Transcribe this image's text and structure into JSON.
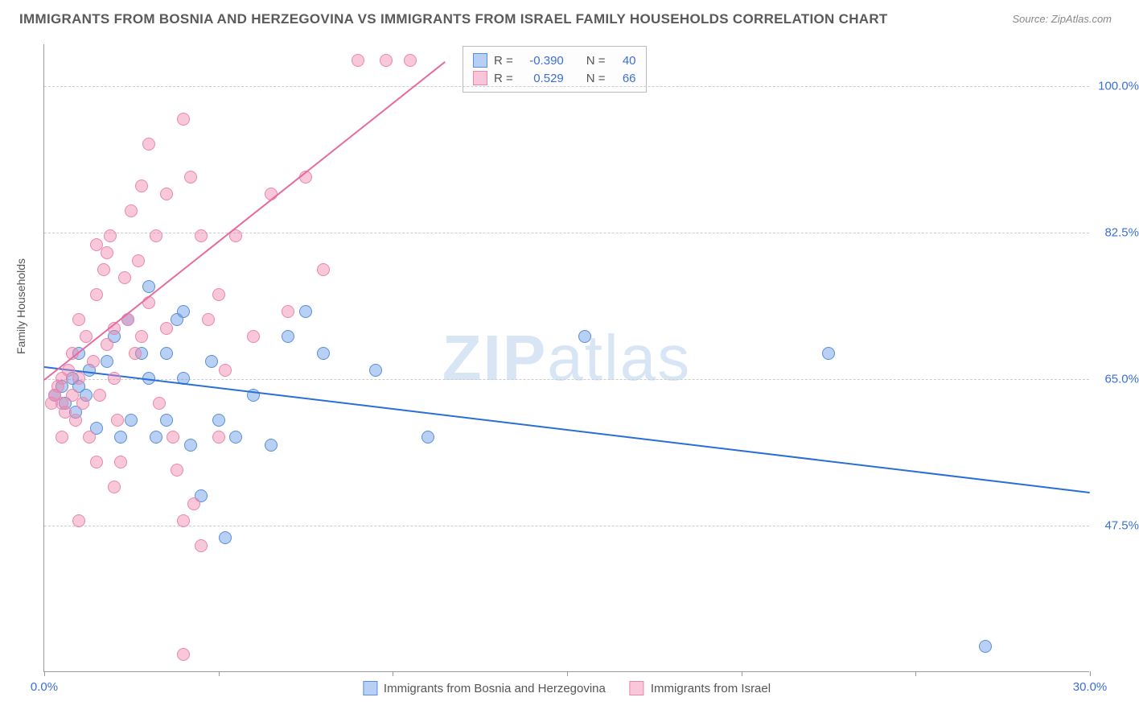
{
  "title": "IMMIGRANTS FROM BOSNIA AND HERZEGOVINA VS IMMIGRANTS FROM ISRAEL FAMILY HOUSEHOLDS CORRELATION CHART",
  "source": "Source: ZipAtlas.com",
  "ylabel": "Family Households",
  "watermark_part1": "ZIP",
  "watermark_part2": "atlas",
  "chart": {
    "type": "scatter",
    "xlim": [
      0,
      30
    ],
    "ylim": [
      30,
      105
    ],
    "ytick_values": [
      47.5,
      65.0,
      82.5,
      100.0
    ],
    "ytick_labels": [
      "47.5%",
      "65.0%",
      "82.5%",
      "100.0%"
    ],
    "xtick_values": [
      0,
      5,
      10,
      15,
      20,
      25,
      30
    ],
    "xtick_labels_shown": {
      "0": "0.0%",
      "30": "30.0%"
    },
    "background_color": "#ffffff",
    "grid_color": "#cccccc",
    "axis_color": "#999999",
    "tick_label_color": "#3b6fd6",
    "marker_radius": 8,
    "marker_opacity": 0.55
  },
  "series": [
    {
      "name": "Immigrants from Bosnia and Herzegovina",
      "color_fill": "rgba(96,150,230,0.45)",
      "color_stroke": "#5b8fd8",
      "trend_color": "#2a6fd6",
      "R": "-0.390",
      "N": "40",
      "trend": {
        "x1": 0,
        "y1": 66.5,
        "x2": 30,
        "y2": 51.5
      },
      "points": [
        [
          0.3,
          63
        ],
        [
          0.5,
          64
        ],
        [
          0.6,
          62
        ],
        [
          0.8,
          65
        ],
        [
          0.9,
          61
        ],
        [
          1.0,
          68
        ],
        [
          1.2,
          63
        ],
        [
          1.3,
          66
        ],
        [
          1.5,
          59
        ],
        [
          1.8,
          67
        ],
        [
          2.0,
          70
        ],
        [
          2.2,
          58
        ],
        [
          2.4,
          72
        ],
        [
          2.5,
          60
        ],
        [
          2.8,
          68
        ],
        [
          3.0,
          76
        ],
        [
          3.0,
          65
        ],
        [
          3.2,
          58
        ],
        [
          3.5,
          68
        ],
        [
          3.5,
          60
        ],
        [
          3.8,
          72
        ],
        [
          4.0,
          65
        ],
        [
          4.2,
          57
        ],
        [
          4.5,
          51
        ],
        [
          4.8,
          67
        ],
        [
          5.0,
          60
        ],
        [
          5.2,
          46
        ],
        [
          5.5,
          58
        ],
        [
          6.0,
          63
        ],
        [
          6.5,
          57
        ],
        [
          7.0,
          70
        ],
        [
          7.5,
          73
        ],
        [
          8.0,
          68
        ],
        [
          9.5,
          66
        ],
        [
          11.0,
          58
        ],
        [
          15.5,
          70
        ],
        [
          22.5,
          68
        ],
        [
          27.0,
          33
        ],
        [
          4.0,
          73
        ],
        [
          1.0,
          64
        ]
      ]
    },
    {
      "name": "Immigrants from Israel",
      "color_fill": "rgba(240,130,170,0.45)",
      "color_stroke": "#e988ab",
      "trend_color": "#e76aa0",
      "R": "0.529",
      "N": "66",
      "trend": {
        "x1": 0,
        "y1": 65.0,
        "x2": 11.5,
        "y2": 103
      },
      "points": [
        [
          0.2,
          62
        ],
        [
          0.3,
          63
        ],
        [
          0.4,
          64
        ],
        [
          0.5,
          62
        ],
        [
          0.5,
          65
        ],
        [
          0.6,
          61
        ],
        [
          0.7,
          66
        ],
        [
          0.8,
          63
        ],
        [
          0.8,
          68
        ],
        [
          0.9,
          60
        ],
        [
          1.0,
          65
        ],
        [
          1.0,
          72
        ],
        [
          1.1,
          62
        ],
        [
          1.2,
          70
        ],
        [
          1.3,
          58
        ],
        [
          1.4,
          67
        ],
        [
          1.5,
          75
        ],
        [
          1.5,
          81
        ],
        [
          1.6,
          63
        ],
        [
          1.7,
          78
        ],
        [
          1.8,
          69
        ],
        [
          1.8,
          80
        ],
        [
          1.9,
          82
        ],
        [
          2.0,
          65
        ],
        [
          2.0,
          71
        ],
        [
          2.1,
          60
        ],
        [
          2.2,
          55
        ],
        [
          2.3,
          77
        ],
        [
          2.4,
          72
        ],
        [
          2.5,
          85
        ],
        [
          2.6,
          68
        ],
        [
          2.7,
          79
        ],
        [
          2.8,
          88
        ],
        [
          2.8,
          70
        ],
        [
          3.0,
          93
        ],
        [
          3.0,
          74
        ],
        [
          3.2,
          82
        ],
        [
          3.3,
          62
        ],
        [
          3.5,
          71
        ],
        [
          3.5,
          87
        ],
        [
          3.7,
          58
        ],
        [
          3.8,
          54
        ],
        [
          4.0,
          96
        ],
        [
          4.0,
          48
        ],
        [
          4.2,
          89
        ],
        [
          4.3,
          50
        ],
        [
          4.5,
          45
        ],
        [
          4.5,
          82
        ],
        [
          4.7,
          72
        ],
        [
          5.0,
          75
        ],
        [
          5.0,
          58
        ],
        [
          5.2,
          66
        ],
        [
          5.5,
          82
        ],
        [
          6.0,
          70
        ],
        [
          6.5,
          87
        ],
        [
          7.0,
          73
        ],
        [
          7.5,
          89
        ],
        [
          8.0,
          78
        ],
        [
          9.0,
          103
        ],
        [
          9.8,
          103
        ],
        [
          10.5,
          103
        ],
        [
          4.0,
          32
        ],
        [
          1.0,
          48
        ],
        [
          1.5,
          55
        ],
        [
          2.0,
          52
        ],
        [
          0.5,
          58
        ]
      ]
    }
  ],
  "legend_top": {
    "R_label": "R =",
    "N_label": "N ="
  },
  "bottom_legend": [
    {
      "label": "Immigrants from Bosnia and Herzegovina",
      "series": 0
    },
    {
      "label": "Immigrants from Israel",
      "series": 1
    }
  ]
}
